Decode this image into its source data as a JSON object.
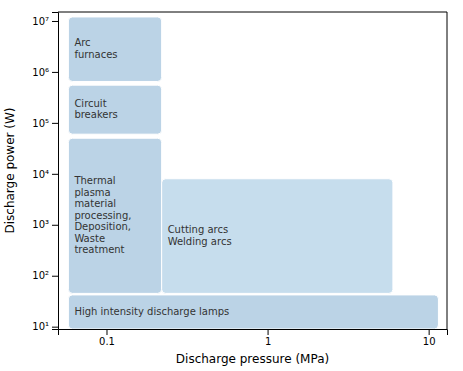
{
  "chart_data": {
    "type": "region",
    "log": true,
    "grid": false,
    "xlabel": "Discharge pressure (MPa)",
    "ylabel": "Discharge power (W)",
    "xlim": [
      0.05,
      13
    ],
    "ylim": [
      9,
      15000000.0
    ],
    "xticks": [
      0.1,
      1,
      10
    ],
    "yticks": [
      {
        "value": 10,
        "label": "10¹"
      },
      {
        "value": 100,
        "label": "10²"
      },
      {
        "value": 1000,
        "label": "10³"
      },
      {
        "value": 10000,
        "label": "10⁴"
      },
      {
        "value": 100000,
        "label": "10⁵"
      },
      {
        "value": 1000000,
        "label": "10⁶"
      },
      {
        "value": 10000000,
        "label": "10⁷"
      }
    ],
    "regions": [
      {
        "label": "Arc\nfurnaces",
        "x0": 0.058,
        "x1": 0.22,
        "y0": 650000.0,
        "y1": 12000000.0,
        "color": "#aac8e0"
      },
      {
        "label": "Circuit\nbreakers",
        "x0": 0.058,
        "x1": 0.22,
        "y0": 60000.0,
        "y1": 550000.0,
        "color": "#aac8e0"
      },
      {
        "label": "Thermal\nplasma\nmaterial\nprocessing,\nDeposition,\nWaste\ntreatment",
        "x0": 0.058,
        "x1": 0.22,
        "y0": 45,
        "y1": 50000.0,
        "color": "#aac8e0"
      },
      {
        "label": "Cutting arcs\nWelding arcs",
        "x0": 0.22,
        "x1": 6.0,
        "y0": 45,
        "y1": 8000,
        "color": "#b8d4e8"
      },
      {
        "label": "High intensity discharge lamps",
        "x0": 0.058,
        "x1": 11.5,
        "y0": 9,
        "y1": 42,
        "color": "#aac8e0"
      }
    ]
  }
}
